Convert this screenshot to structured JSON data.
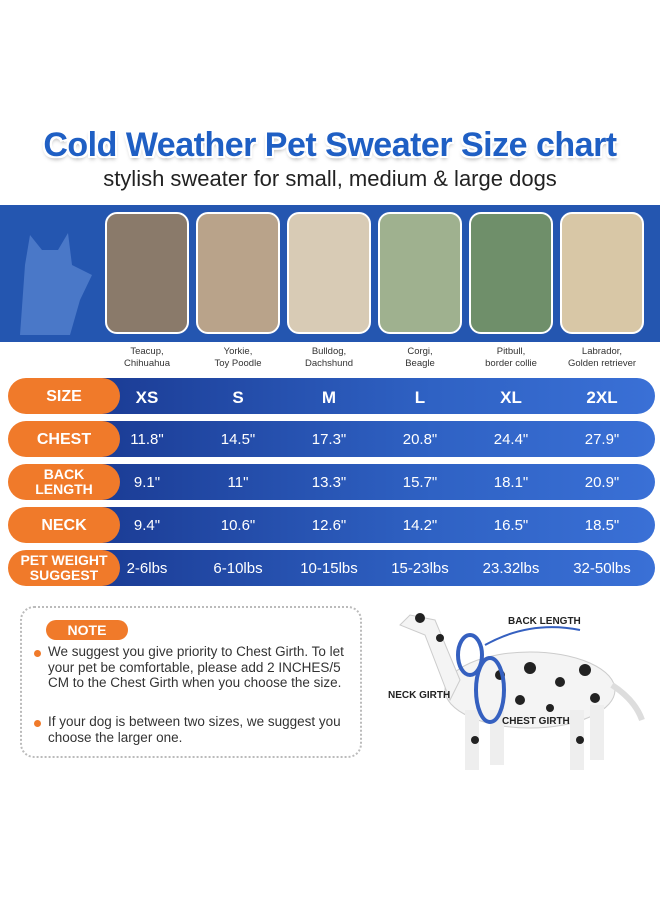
{
  "header": {
    "title": "Cold Weather Pet Sweater Size chart",
    "subtitle": "stylish sweater for small, medium & large dogs"
  },
  "breeds": [
    "Teacup,\nChihuahua",
    "Yorkie,\nToy Poodle",
    "Bulldog,\nDachshund",
    "Corgi,\nBeagle",
    "Pitbull,\nborder collie",
    "Labrador,\nGolden retriever"
  ],
  "table": {
    "rows": [
      {
        "label": "SIZE",
        "cells": [
          "XS",
          "S",
          "M",
          "L",
          "XL",
          "2XL"
        ]
      },
      {
        "label": "CHEST",
        "cells": [
          "11.8\"",
          "14.5\"",
          "17.3\"",
          "20.8\"",
          "24.4\"",
          "27.9\""
        ]
      },
      {
        "label": "BACK\nLENGTH",
        "cells": [
          "9.1\"",
          "11\"",
          "13.3\"",
          "15.7\"",
          "18.1\"",
          "20.9\""
        ]
      },
      {
        "label": "NECK",
        "cells": [
          "9.4\"",
          "10.6\"",
          "12.6\"",
          "14.2\"",
          "16.5\"",
          "18.5\""
        ]
      },
      {
        "label": "PET WEIGHT\nSUGGEST",
        "cells": [
          "2-6lbs",
          "6-10lbs",
          "10-15lbs",
          "15-23lbs",
          "23.32lbs",
          "32-50lbs"
        ]
      }
    ]
  },
  "note": {
    "title": "NOTE",
    "items": [
      "We suggest you give priority to Chest Girth. To let your pet be comfortable, please add 2 INCHES/5 CM to the Chest Girth when you choose the size.",
      "If your dog is between two sizes, we suggest you choose the larger one."
    ]
  },
  "diagram": {
    "back_length": "BACK LENGTH",
    "neck_girth": "NECK GIRTH",
    "chest_girth": "CHEST GIRTH"
  }
}
